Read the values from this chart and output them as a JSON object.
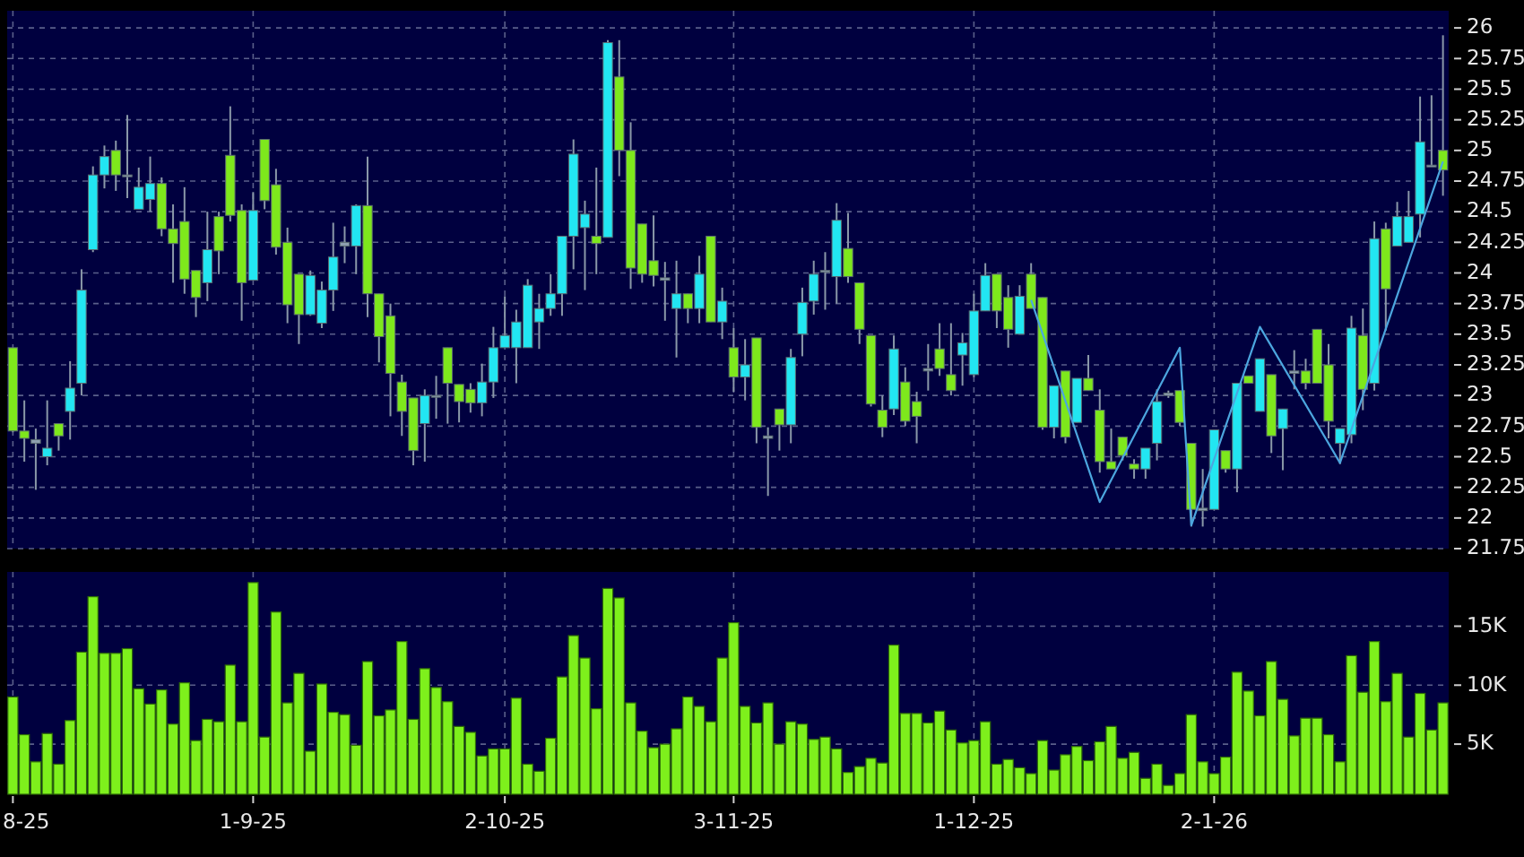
{
  "chart_data": [
    {
      "type": "candlestick",
      "ohlc": [
        [
          23.39,
          23.39,
          22.7,
          22.71
        ],
        [
          22.71,
          22.96,
          22.46,
          22.65
        ],
        [
          22.64,
          22.73,
          22.23,
          22.61
        ],
        [
          22.5,
          22.96,
          22.43,
          22.57
        ],
        [
          22.77,
          22.77,
          22.55,
          22.67
        ],
        [
          22.87,
          23.28,
          22.64,
          23.06
        ],
        [
          23.1,
          24.03,
          23.0,
          23.86
        ],
        [
          24.19,
          24.87,
          24.17,
          24.8
        ],
        [
          24.8,
          25.04,
          24.69,
          24.95
        ],
        [
          25.0,
          25.08,
          24.67,
          24.8
        ],
        [
          24.8,
          25.29,
          24.61,
          24.8
        ],
        [
          24.52,
          24.86,
          24.52,
          24.7
        ],
        [
          24.6,
          24.95,
          24.5,
          24.73
        ],
        [
          24.73,
          24.78,
          24.3,
          24.36
        ],
        [
          24.36,
          24.56,
          23.92,
          24.24
        ],
        [
          24.42,
          24.7,
          23.83,
          23.95
        ],
        [
          24.02,
          24.02,
          23.64,
          23.8
        ],
        [
          23.92,
          24.5,
          23.77,
          24.19
        ],
        [
          24.46,
          24.5,
          23.99,
          24.18
        ],
        [
          24.96,
          25.36,
          24.42,
          24.47
        ],
        [
          24.51,
          24.56,
          23.61,
          23.92
        ],
        [
          23.94,
          24.66,
          23.94,
          24.51
        ],
        [
          25.09,
          25.09,
          24.52,
          24.59
        ],
        [
          24.72,
          24.85,
          24.15,
          24.21
        ],
        [
          24.25,
          24.37,
          23.59,
          23.74
        ],
        [
          23.99,
          23.99,
          23.42,
          23.66
        ],
        [
          23.66,
          24.02,
          23.65,
          23.98
        ],
        [
          23.59,
          23.93,
          23.55,
          23.86
        ],
        [
          23.86,
          24.41,
          23.69,
          24.13
        ],
        [
          24.25,
          24.38,
          24.08,
          24.22
        ],
        [
          24.22,
          24.56,
          23.99,
          24.55
        ],
        [
          24.55,
          24.95,
          23.64,
          23.83
        ],
        [
          23.83,
          23.83,
          23.27,
          23.48
        ],
        [
          23.65,
          23.75,
          22.83,
          23.18
        ],
        [
          23.11,
          23.17,
          22.67,
          22.87
        ],
        [
          22.98,
          22.98,
          22.43,
          22.55
        ],
        [
          22.77,
          23.05,
          22.46,
          23.0
        ],
        [
          23.0,
          23.16,
          22.81,
          22.99
        ],
        [
          23.39,
          23.39,
          22.77,
          23.1
        ],
        [
          23.09,
          23.09,
          22.78,
          22.95
        ],
        [
          23.05,
          23.1,
          22.86,
          22.94
        ],
        [
          22.94,
          23.26,
          22.83,
          23.11
        ],
        [
          23.11,
          23.56,
          22.98,
          23.39
        ],
        [
          23.39,
          23.81,
          23.39,
          23.49
        ],
        [
          23.39,
          23.7,
          23.1,
          23.6
        ],
        [
          23.39,
          23.95,
          23.39,
          23.9
        ],
        [
          23.6,
          23.83,
          23.38,
          23.71
        ],
        [
          23.71,
          23.99,
          23.65,
          23.83
        ],
        [
          23.83,
          24.3,
          23.65,
          24.3
        ],
        [
          24.3,
          25.09,
          24.03,
          24.97
        ],
        [
          24.37,
          24.59,
          23.86,
          24.48
        ],
        [
          24.3,
          24.86,
          23.99,
          24.24
        ],
        [
          24.29,
          25.9,
          24.29,
          25.88
        ],
        [
          25.6,
          25.9,
          24.79,
          25.0
        ],
        [
          25.0,
          25.23,
          23.87,
          24.04
        ],
        [
          24.4,
          24.4,
          23.92,
          23.99
        ],
        [
          24.1,
          24.47,
          23.89,
          23.98
        ],
        [
          23.96,
          24.09,
          23.61,
          23.94
        ],
        [
          23.71,
          24.1,
          23.31,
          23.83
        ],
        [
          23.83,
          23.83,
          23.59,
          23.71
        ],
        [
          23.71,
          24.14,
          23.59,
          23.99
        ],
        [
          24.3,
          24.3,
          23.6,
          23.6
        ],
        [
          23.6,
          23.88,
          23.46,
          23.77
        ],
        [
          23.39,
          23.55,
          23.03,
          23.15
        ],
        [
          23.15,
          23.46,
          22.96,
          23.25
        ],
        [
          23.47,
          23.47,
          22.61,
          22.74
        ],
        [
          22.67,
          22.74,
          22.18,
          22.65
        ],
        [
          22.89,
          22.89,
          22.55,
          22.76
        ],
        [
          22.76,
          23.38,
          22.61,
          23.31
        ],
        [
          23.5,
          23.88,
          23.32,
          23.76
        ],
        [
          23.77,
          24.1,
          23.66,
          23.99
        ],
        [
          24.02,
          24.17,
          23.7,
          24.01
        ],
        [
          23.97,
          24.57,
          23.75,
          24.43
        ],
        [
          24.2,
          24.49,
          23.92,
          23.97
        ],
        [
          23.92,
          23.92,
          23.42,
          23.54
        ],
        [
          23.49,
          23.49,
          22.91,
          22.93
        ],
        [
          22.88,
          23.0,
          22.66,
          22.74
        ],
        [
          22.89,
          23.49,
          22.84,
          23.38
        ],
        [
          23.11,
          23.23,
          22.75,
          22.79
        ],
        [
          22.95,
          23.03,
          22.61,
          22.83
        ],
        [
          23.22,
          23.42,
          23.04,
          23.2
        ],
        [
          23.38,
          23.59,
          23.16,
          23.22
        ],
        [
          23.17,
          23.59,
          23.0,
          23.04
        ],
        [
          23.33,
          23.51,
          23.08,
          23.43
        ],
        [
          23.17,
          23.83,
          23.15,
          23.69
        ],
        [
          23.69,
          24.08,
          23.69,
          23.98
        ],
        [
          23.99,
          23.99,
          23.55,
          23.69
        ],
        [
          23.8,
          23.9,
          23.39,
          23.54
        ],
        [
          23.5,
          23.9,
          23.5,
          23.81
        ],
        [
          23.99,
          24.08,
          23.71,
          23.71
        ],
        [
          23.8,
          23.8,
          22.72,
          22.74
        ],
        [
          22.74,
          23.08,
          22.65,
          23.08
        ],
        [
          23.2,
          23.2,
          22.61,
          22.66
        ],
        [
          22.78,
          23.14,
          22.78,
          23.14
        ],
        [
          23.14,
          23.33,
          23.04,
          23.04
        ],
        [
          22.88,
          23.05,
          22.37,
          22.46
        ],
        [
          22.46,
          22.73,
          22.4,
          22.4
        ],
        [
          22.66,
          22.66,
          22.47,
          22.51
        ],
        [
          22.44,
          22.48,
          22.32,
          22.4
        ],
        [
          22.4,
          22.57,
          22.32,
          22.57
        ],
        [
          22.61,
          23.05,
          22.47,
          22.95
        ],
        [
          23.02,
          23.04,
          22.98,
          23.0
        ],
        [
          23.04,
          23.04,
          22.75,
          22.78
        ],
        [
          22.61,
          22.61,
          21.93,
          22.07
        ],
        [
          22.08,
          22.4,
          21.93,
          22.06
        ],
        [
          22.07,
          22.72,
          22.07,
          22.72
        ],
        [
          22.55,
          22.55,
          22.37,
          22.4
        ],
        [
          22.4,
          23.1,
          22.21,
          23.1
        ],
        [
          23.16,
          23.16,
          23.1,
          23.1
        ],
        [
          22.87,
          23.3,
          22.87,
          23.3
        ],
        [
          23.17,
          23.17,
          22.53,
          22.67
        ],
        [
          22.73,
          22.89,
          22.39,
          22.89
        ],
        [
          23.2,
          23.37,
          23.05,
          23.18
        ],
        [
          23.2,
          23.3,
          23.05,
          23.1
        ],
        [
          23.54,
          23.54,
          23.1,
          23.1
        ],
        [
          23.25,
          23.42,
          22.65,
          22.79
        ],
        [
          22.61,
          22.73,
          22.44,
          22.73
        ],
        [
          22.68,
          23.65,
          22.61,
          23.55
        ],
        [
          23.49,
          23.71,
          22.88,
          23.05
        ],
        [
          23.1,
          24.42,
          23.04,
          24.28
        ],
        [
          24.36,
          24.41,
          23.53,
          23.87
        ],
        [
          24.22,
          24.58,
          24.22,
          24.46
        ],
        [
          24.25,
          24.67,
          24.25,
          24.46
        ],
        [
          24.48,
          25.44,
          24.29,
          25.07
        ],
        [
          24.88,
          25.45,
          24.87,
          24.87
        ],
        [
          25.0,
          25.94,
          24.63,
          24.84
        ]
      ],
      "colors": [
        "#7ee81c",
        "#7ee81c",
        "#8fa0b0",
        "#22e6f2",
        "#7ee81c",
        "#22e6f2",
        "#22e6f2",
        "#22e6f2",
        "#22e6f2",
        "#7ee81c",
        "#8fa0b0",
        "#22e6f2",
        "#22e6f2",
        "#7ee81c",
        "#7ee81c",
        "#7ee81c",
        "#7ee81c",
        "#22e6f2",
        "#7ee81c",
        "#7ee81c",
        "#7ee81c",
        "#22e6f2",
        "#7ee81c",
        "#7ee81c",
        "#7ee81c",
        "#7ee81c",
        "#22e6f2",
        "#22e6f2",
        "#22e6f2",
        "#8fa0b0",
        "#22e6f2",
        "#7ee81c",
        "#7ee81c",
        "#7ee81c",
        "#7ee81c",
        "#7ee81c",
        "#22e6f2",
        "#8fa0b0",
        "#7ee81c",
        "#7ee81c",
        "#7ee81c",
        "#22e6f2",
        "#22e6f2",
        "#22e6f2",
        "#22e6f2",
        "#22e6f2",
        "#22e6f2",
        "#22e6f2",
        "#22e6f2",
        "#22e6f2",
        "#22e6f2",
        "#7ee81c",
        "#22e6f2",
        "#7ee81c",
        "#7ee81c",
        "#7ee81c",
        "#7ee81c",
        "#8fa0b0",
        "#22e6f2",
        "#7ee81c",
        "#22e6f2",
        "#7ee81c",
        "#22e6f2",
        "#7ee81c",
        "#22e6f2",
        "#7ee81c",
        "#8fa0b0",
        "#7ee81c",
        "#22e6f2",
        "#22e6f2",
        "#22e6f2",
        "#8fa0b0",
        "#22e6f2",
        "#7ee81c",
        "#7ee81c",
        "#7ee81c",
        "#7ee81c",
        "#22e6f2",
        "#7ee81c",
        "#7ee81c",
        "#8fa0b0",
        "#7ee81c",
        "#7ee81c",
        "#22e6f2",
        "#22e6f2",
        "#22e6f2",
        "#7ee81c",
        "#7ee81c",
        "#22e6f2",
        "#7ee81c",
        "#7ee81c",
        "#22e6f2",
        "#7ee81c",
        "#22e6f2",
        "#7ee81c",
        "#7ee81c",
        "#7ee81c",
        "#7ee81c",
        "#7ee81c",
        "#22e6f2",
        "#22e6f2",
        "#8fa0b0",
        "#7ee81c",
        "#7ee81c",
        "#8fa0b0",
        "#22e6f2",
        "#7ee81c",
        "#22e6f2",
        "#7ee81c",
        "#22e6f2",
        "#7ee81c",
        "#22e6f2",
        "#8fa0b0",
        "#7ee81c",
        "#7ee81c",
        "#7ee81c",
        "#22e6f2",
        "#22e6f2",
        "#7ee81c",
        "#22e6f2",
        "#7ee81c",
        "#22e6f2",
        "#22e6f2",
        "#22e6f2",
        "#8fa0b0",
        "#7ee81c"
      ],
      "series": [
        {
          "type": "line",
          "values": [
            null,
            null,
            null,
            null,
            null,
            null,
            null,
            null,
            null,
            null,
            null,
            null,
            null,
            null,
            null,
            null,
            null,
            null,
            null,
            null,
            null,
            null,
            null,
            null,
            null,
            null,
            null,
            null,
            null,
            null,
            null,
            null,
            null,
            null,
            null,
            null,
            null,
            null,
            null,
            null,
            null,
            null,
            null,
            null,
            null,
            null,
            null,
            null,
            null,
            null,
            null,
            null,
            null,
            null,
            null,
            null,
            null,
            null,
            null,
            null,
            null,
            null,
            null,
            null,
            null,
            null,
            null,
            null,
            null,
            null,
            null,
            null,
            null,
            null,
            null,
            null,
            null,
            null,
            null,
            null,
            null,
            null,
            null,
            null,
            null,
            null,
            null,
            null,
            null,
            23.78,
            null,
            null,
            null,
            null,
            null,
            22.13,
            null,
            null,
            null,
            null,
            null,
            null,
            23.39,
            21.94,
            null,
            null,
            null,
            null,
            null,
            23.56,
            null,
            null,
            null,
            null,
            null,
            null,
            22.45,
            null,
            null,
            null,
            null,
            null,
            null,
            null,
            null,
            24.91
          ],
          "color": "#4ca6df"
        }
      ],
      "ylim": [
        21.75,
        26.14
      ],
      "yticks": [
        26,
        25.75,
        25.5,
        25.25,
        25,
        24.75,
        24.5,
        24.25,
        24,
        23.75,
        23.5,
        23.25,
        23,
        22.75,
        22.5,
        22.25,
        22,
        21.75
      ],
      "grid": true,
      "tick_labels": "y"
    },
    {
      "type": "bar",
      "categories": [
        "8-25",
        null,
        null,
        null,
        null,
        null,
        null,
        null,
        null,
        null,
        null,
        null,
        null,
        null,
        null,
        null,
        null,
        null,
        null,
        null,
        null,
        "1-9-25",
        null,
        null,
        null,
        null,
        null,
        null,
        null,
        null,
        null,
        null,
        null,
        null,
        null,
        null,
        null,
        null,
        null,
        null,
        null,
        null,
        null,
        "2-10-25",
        null,
        null,
        null,
        null,
        null,
        null,
        null,
        null,
        null,
        null,
        null,
        null,
        null,
        null,
        null,
        null,
        null,
        null,
        null,
        "3-11-25",
        null,
        null,
        null,
        null,
        null,
        null,
        null,
        null,
        null,
        null,
        null,
        null,
        null,
        null,
        null,
        null,
        null,
        null,
        null,
        null,
        "1-12-25",
        null,
        null,
        null,
        null,
        null,
        null,
        null,
        null,
        null,
        null,
        null,
        null,
        null,
        null,
        null,
        null,
        null,
        null,
        null,
        null,
        "2-1-26",
        null,
        null,
        null,
        null,
        null,
        null,
        null,
        null,
        null,
        null,
        null,
        null,
        null,
        null,
        null,
        null,
        null,
        null,
        null,
        null
      ],
      "values": [
        9000,
        5800,
        3500,
        5900,
        3300,
        7000,
        12800,
        17500,
        12700,
        12700,
        13100,
        9700,
        8400,
        9600,
        6700,
        10200,
        5300,
        7100,
        6900,
        11700,
        6900,
        18700,
        5600,
        16200,
        8500,
        11000,
        4400,
        10100,
        7700,
        7500,
        4900,
        12000,
        7400,
        7900,
        13700,
        7100,
        11400,
        9800,
        8600,
        6500,
        6000,
        4000,
        4600,
        4600,
        8900,
        3300,
        2700,
        5500,
        10700,
        14200,
        12300,
        8000,
        18200,
        17400,
        8500,
        6100,
        4700,
        5000,
        6300,
        9000,
        8200,
        6900,
        12300,
        15300,
        8200,
        6800,
        8500,
        5000,
        6900,
        6700,
        5400,
        5600,
        4600,
        2600,
        3100,
        3800,
        3400,
        13400,
        7600,
        7600,
        6800,
        7800,
        6200,
        5100,
        5300,
        6900,
        3300,
        3700,
        3000,
        2500,
        5300,
        2800,
        4100,
        4800,
        3600,
        5200,
        6500,
        3800,
        4300,
        2100,
        3300,
        1500,
        2500,
        7500,
        3500,
        2500,
        3900,
        11100,
        9500,
        7400,
        12000,
        8800,
        5700,
        7200,
        7200,
        5800,
        3500,
        12500,
        9400,
        13700,
        8600,
        11000,
        5600,
        9300,
        6200,
        8500
      ],
      "color": "#7ef01c",
      "ylim": [
        750,
        19600
      ],
      "yticks": [
        {
          "value": 5000,
          "label": "5K"
        },
        {
          "value": 10000,
          "label": "10K"
        },
        {
          "value": 15000,
          "label": "15K"
        }
      ],
      "grid": true
    }
  ]
}
